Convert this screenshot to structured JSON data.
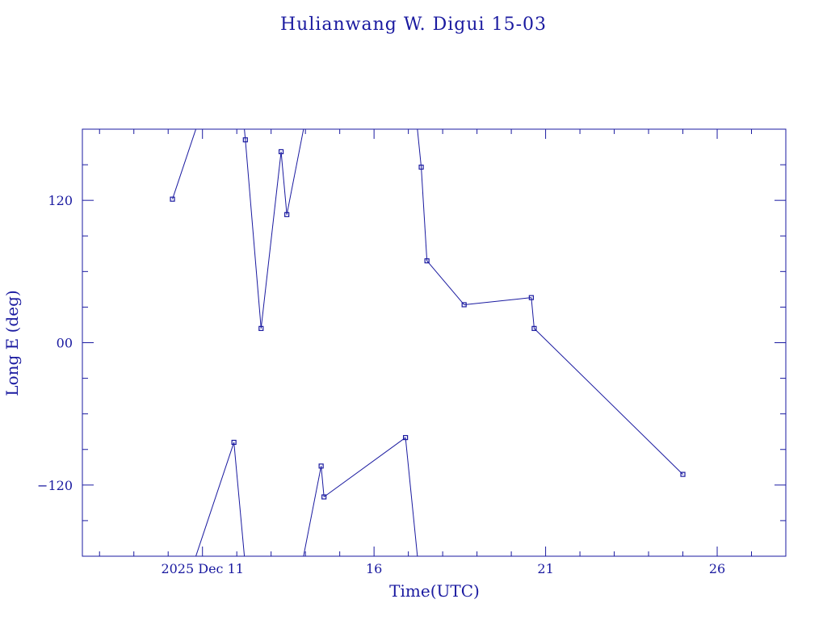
{
  "colors": {
    "ink": "#1a1aa0",
    "background": "#ffffff"
  },
  "chart_data": {
    "type": "line",
    "title": "Hulianwang W. Digui 15-03",
    "xlabel": "Time(UTC)",
    "ylabel": "Long E (deg)",
    "xlim": [
      "2025-12-07T12:00",
      "2025-12-28T00:00"
    ],
    "ylim": [
      -180,
      180
    ],
    "x_ticks": [
      {
        "at": "2025-12-11T00:00",
        "label": "2025 Dec 11"
      },
      {
        "at": "2025-12-16T00:00",
        "label": "16"
      },
      {
        "at": "2025-12-21T00:00",
        "label": "21"
      },
      {
        "at": "2025-12-26T00:00",
        "label": "26"
      }
    ],
    "y_ticks": [
      {
        "at": 120,
        "label": "120"
      },
      {
        "at": 0,
        "label": "00"
      },
      {
        "at": -120,
        "label": "-120"
      }
    ],
    "wrap_longitude": true,
    "grid": false,
    "series": [
      {
        "marker": "square",
        "points": [
          {
            "x": "2025-12-10T03:00",
            "y": 121
          },
          {
            "x": "2025-12-11T22:00",
            "y": -84
          },
          {
            "x": "2025-12-12T06:00",
            "y": 171
          },
          {
            "x": "2025-12-12T17:00",
            "y": 12
          },
          {
            "x": "2025-12-13T07:00",
            "y": 161
          },
          {
            "x": "2025-12-13T11:00",
            "y": 108
          },
          {
            "x": "2025-12-14T11:00",
            "y": -104
          },
          {
            "x": "2025-12-14T13:00",
            "y": -130
          },
          {
            "x": "2025-12-16T22:00",
            "y": -80
          },
          {
            "x": "2025-12-17T09:00",
            "y": 148
          },
          {
            "x": "2025-12-17T13:00",
            "y": 69
          },
          {
            "x": "2025-12-18T15:00",
            "y": 32
          },
          {
            "x": "2025-12-20T14:00",
            "y": 38
          },
          {
            "x": "2025-12-20T16:00",
            "y": 12
          },
          {
            "x": "2025-12-25T00:00",
            "y": -111
          }
        ]
      }
    ]
  }
}
